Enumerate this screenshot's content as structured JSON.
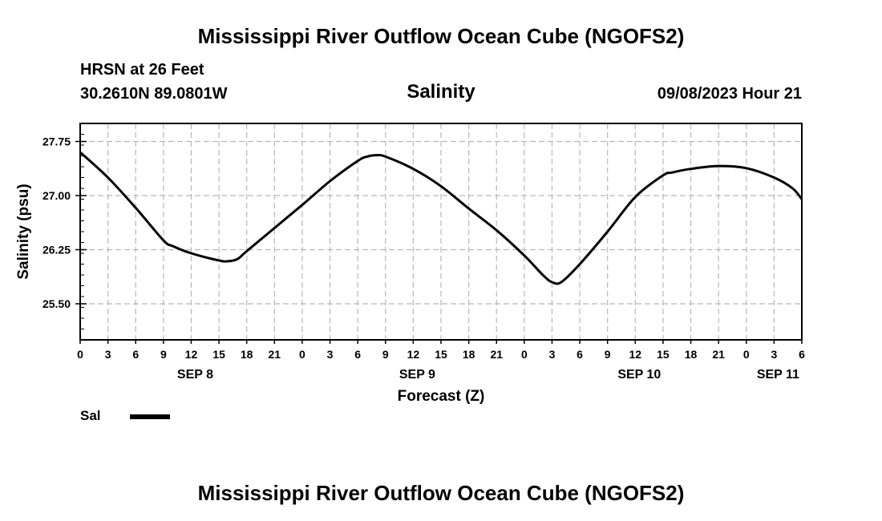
{
  "header": {
    "main_title": "Mississippi River Outflow Ocean Cube (NGOFS2)",
    "station": "HRSN at 26 Feet",
    "coords": "30.2610N  89.0801W",
    "chart_title": "Salinity",
    "datetime": "09/08/2023 Hour 21"
  },
  "legend": {
    "label": "Sal"
  },
  "footer": {
    "title": "Mississippi River Outflow Ocean Cube (NGOFS2)"
  },
  "chart_data": {
    "type": "line",
    "title": "Salinity",
    "xlabel": "Forecast (Z)",
    "ylabel": "Salinity (psu)",
    "x_unit": "forecast hour from 2023-09-08 00Z",
    "xlim": [
      0,
      78
    ],
    "ylim": [
      25.0,
      28.0
    ],
    "yticks": [
      25.5,
      26.25,
      27.0,
      27.75
    ],
    "ytick_labels": [
      "25.50",
      "26.25",
      "27.00",
      "27.75"
    ],
    "xticks": [
      0,
      3,
      6,
      9,
      12,
      15,
      18,
      21,
      24,
      27,
      30,
      33,
      36,
      39,
      42,
      45,
      48,
      51,
      54,
      57,
      60,
      63,
      66,
      69,
      72,
      75,
      78
    ],
    "xtick_labels": [
      "0",
      "3",
      "6",
      "9",
      "12",
      "15",
      "18",
      "21",
      "0",
      "3",
      "6",
      "9",
      "12",
      "15",
      "18",
      "21",
      "0",
      "3",
      "6",
      "9",
      "12",
      "15",
      "18",
      "21",
      "0",
      "3",
      "6"
    ],
    "day_labels": [
      {
        "x": 12,
        "label": "SEP 8"
      },
      {
        "x": 36,
        "label": "SEP 9"
      },
      {
        "x": 60,
        "label": "SEP 10"
      },
      {
        "x": 75,
        "label": "SEP 11"
      }
    ],
    "grid": true,
    "legend_position": "bottom-left",
    "series": [
      {
        "name": "Sal",
        "color": "#000000",
        "x": [
          0,
          3,
          6,
          9,
          10,
          12,
          15,
          16,
          17,
          18,
          21,
          24,
          27,
          30,
          31,
          32,
          33,
          36,
          39,
          42,
          45,
          48,
          50,
          51,
          52,
          54,
          57,
          60,
          63,
          64,
          66,
          69,
          72,
          75,
          77,
          78
        ],
        "values": [
          27.6,
          27.25,
          26.83,
          26.38,
          26.3,
          26.2,
          26.1,
          26.09,
          26.12,
          26.23,
          26.55,
          26.87,
          27.2,
          27.48,
          27.54,
          27.56,
          27.54,
          27.37,
          27.13,
          26.82,
          26.52,
          26.17,
          25.9,
          25.8,
          25.8,
          26.05,
          26.5,
          26.98,
          27.28,
          27.32,
          27.37,
          27.41,
          27.38,
          27.25,
          27.1,
          26.95
        ]
      }
    ]
  }
}
